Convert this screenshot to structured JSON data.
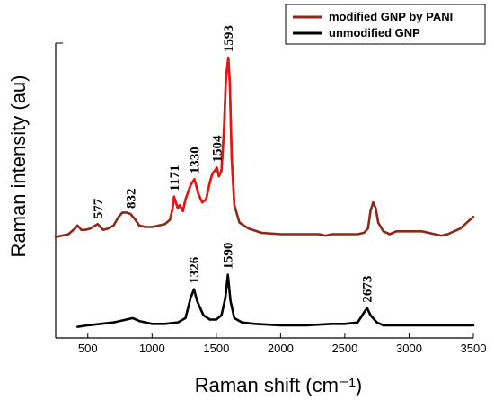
{
  "chart_data": {
    "type": "line",
    "xlabel": "Raman shift (cm⁻¹)",
    "ylabel": "Raman intensity (au)",
    "xlim": [
      250,
      3500
    ],
    "ylim": [
      0,
      100
    ],
    "x_ticks": [
      500,
      1000,
      1500,
      2000,
      2500,
      3000,
      3500
    ],
    "grid": false,
    "legend_position": "top-right",
    "series": [
      {
        "name": "modified GNP by PANI",
        "color": "#8b2a18",
        "highlight_color": "#ee1111",
        "x": [
          250,
          350,
          400,
          420,
          450,
          480,
          520,
          577,
          620,
          660,
          700,
          740,
          770,
          800,
          832,
          870,
          900,
          950,
          1000,
          1050,
          1100,
          1140,
          1160,
          1171,
          1185,
          1200,
          1215,
          1240,
          1260,
          1300,
          1330,
          1360,
          1390,
          1420,
          1450,
          1470,
          1490,
          1504,
          1520,
          1540,
          1560,
          1575,
          1593,
          1605,
          1620,
          1640,
          1680,
          1750,
          1850,
          2000,
          2150,
          2300,
          2350,
          2400,
          2500,
          2600,
          2650,
          2680,
          2700,
          2720,
          2740,
          2760,
          2800,
          2850,
          2900,
          3000,
          3100,
          3200,
          3250,
          3300,
          3350,
          3400,
          3450,
          3500
        ],
        "y": [
          33,
          34,
          36,
          37,
          35.5,
          35.5,
          36,
          37.5,
          35.5,
          36,
          37,
          40,
          41.5,
          41.5,
          41,
          39,
          37,
          36.5,
          36.5,
          37,
          37.5,
          39,
          43,
          47,
          45,
          43,
          44,
          42,
          46,
          51,
          53,
          48,
          45,
          46,
          52,
          55,
          56,
          57,
          54,
          56,
          70,
          88,
          95,
          86,
          60,
          44,
          38,
          36,
          34.5,
          34,
          34,
          34,
          33.5,
          34,
          34,
          34,
          34.5,
          36,
          42,
          45,
          43,
          38,
          35,
          34,
          35,
          35,
          35,
          34,
          33.5,
          34,
          35,
          36,
          38,
          40
        ]
      },
      {
        "name": "unmodified GNP",
        "color": "#000000",
        "x": [
          420,
          500,
          600,
          700,
          800,
          850,
          900,
          1000,
          1100,
          1200,
          1260,
          1300,
          1326,
          1350,
          1400,
          1450,
          1500,
          1540,
          1570,
          1590,
          1610,
          1640,
          1700,
          1800,
          2000,
          2200,
          2400,
          2500,
          2600,
          2650,
          2673,
          2700,
          2750,
          2800,
          2900,
          3000,
          3200,
          3400,
          3500
        ],
        "y": [
          2,
          2.5,
          3,
          3.5,
          4.5,
          5,
          4,
          3,
          3,
          3.5,
          5,
          12,
          15,
          11,
          6,
          4.5,
          4.5,
          6,
          12,
          20,
          11,
          5,
          3.5,
          3,
          2.5,
          2.5,
          3,
          3,
          3.5,
          7,
          8.5,
          6,
          3.5,
          2.5,
          2.5,
          2.5,
          2.5,
          2.5,
          2.5
        ]
      }
    ],
    "annotations": [
      {
        "text": "577",
        "x": 577,
        "series": 0
      },
      {
        "text": "832",
        "x": 832,
        "series": 0
      },
      {
        "text": "1171",
        "x": 1171,
        "series": 0
      },
      {
        "text": "1330",
        "x": 1330,
        "series": 0
      },
      {
        "text": "1504",
        "x": 1504,
        "series": 0
      },
      {
        "text": "1593",
        "x": 1593,
        "series": 0
      },
      {
        "text": "1326",
        "x": 1326,
        "series": 1
      },
      {
        "text": "1590",
        "x": 1590,
        "series": 1
      },
      {
        "text": "2673",
        "x": 2673,
        "series": 1
      }
    ]
  }
}
